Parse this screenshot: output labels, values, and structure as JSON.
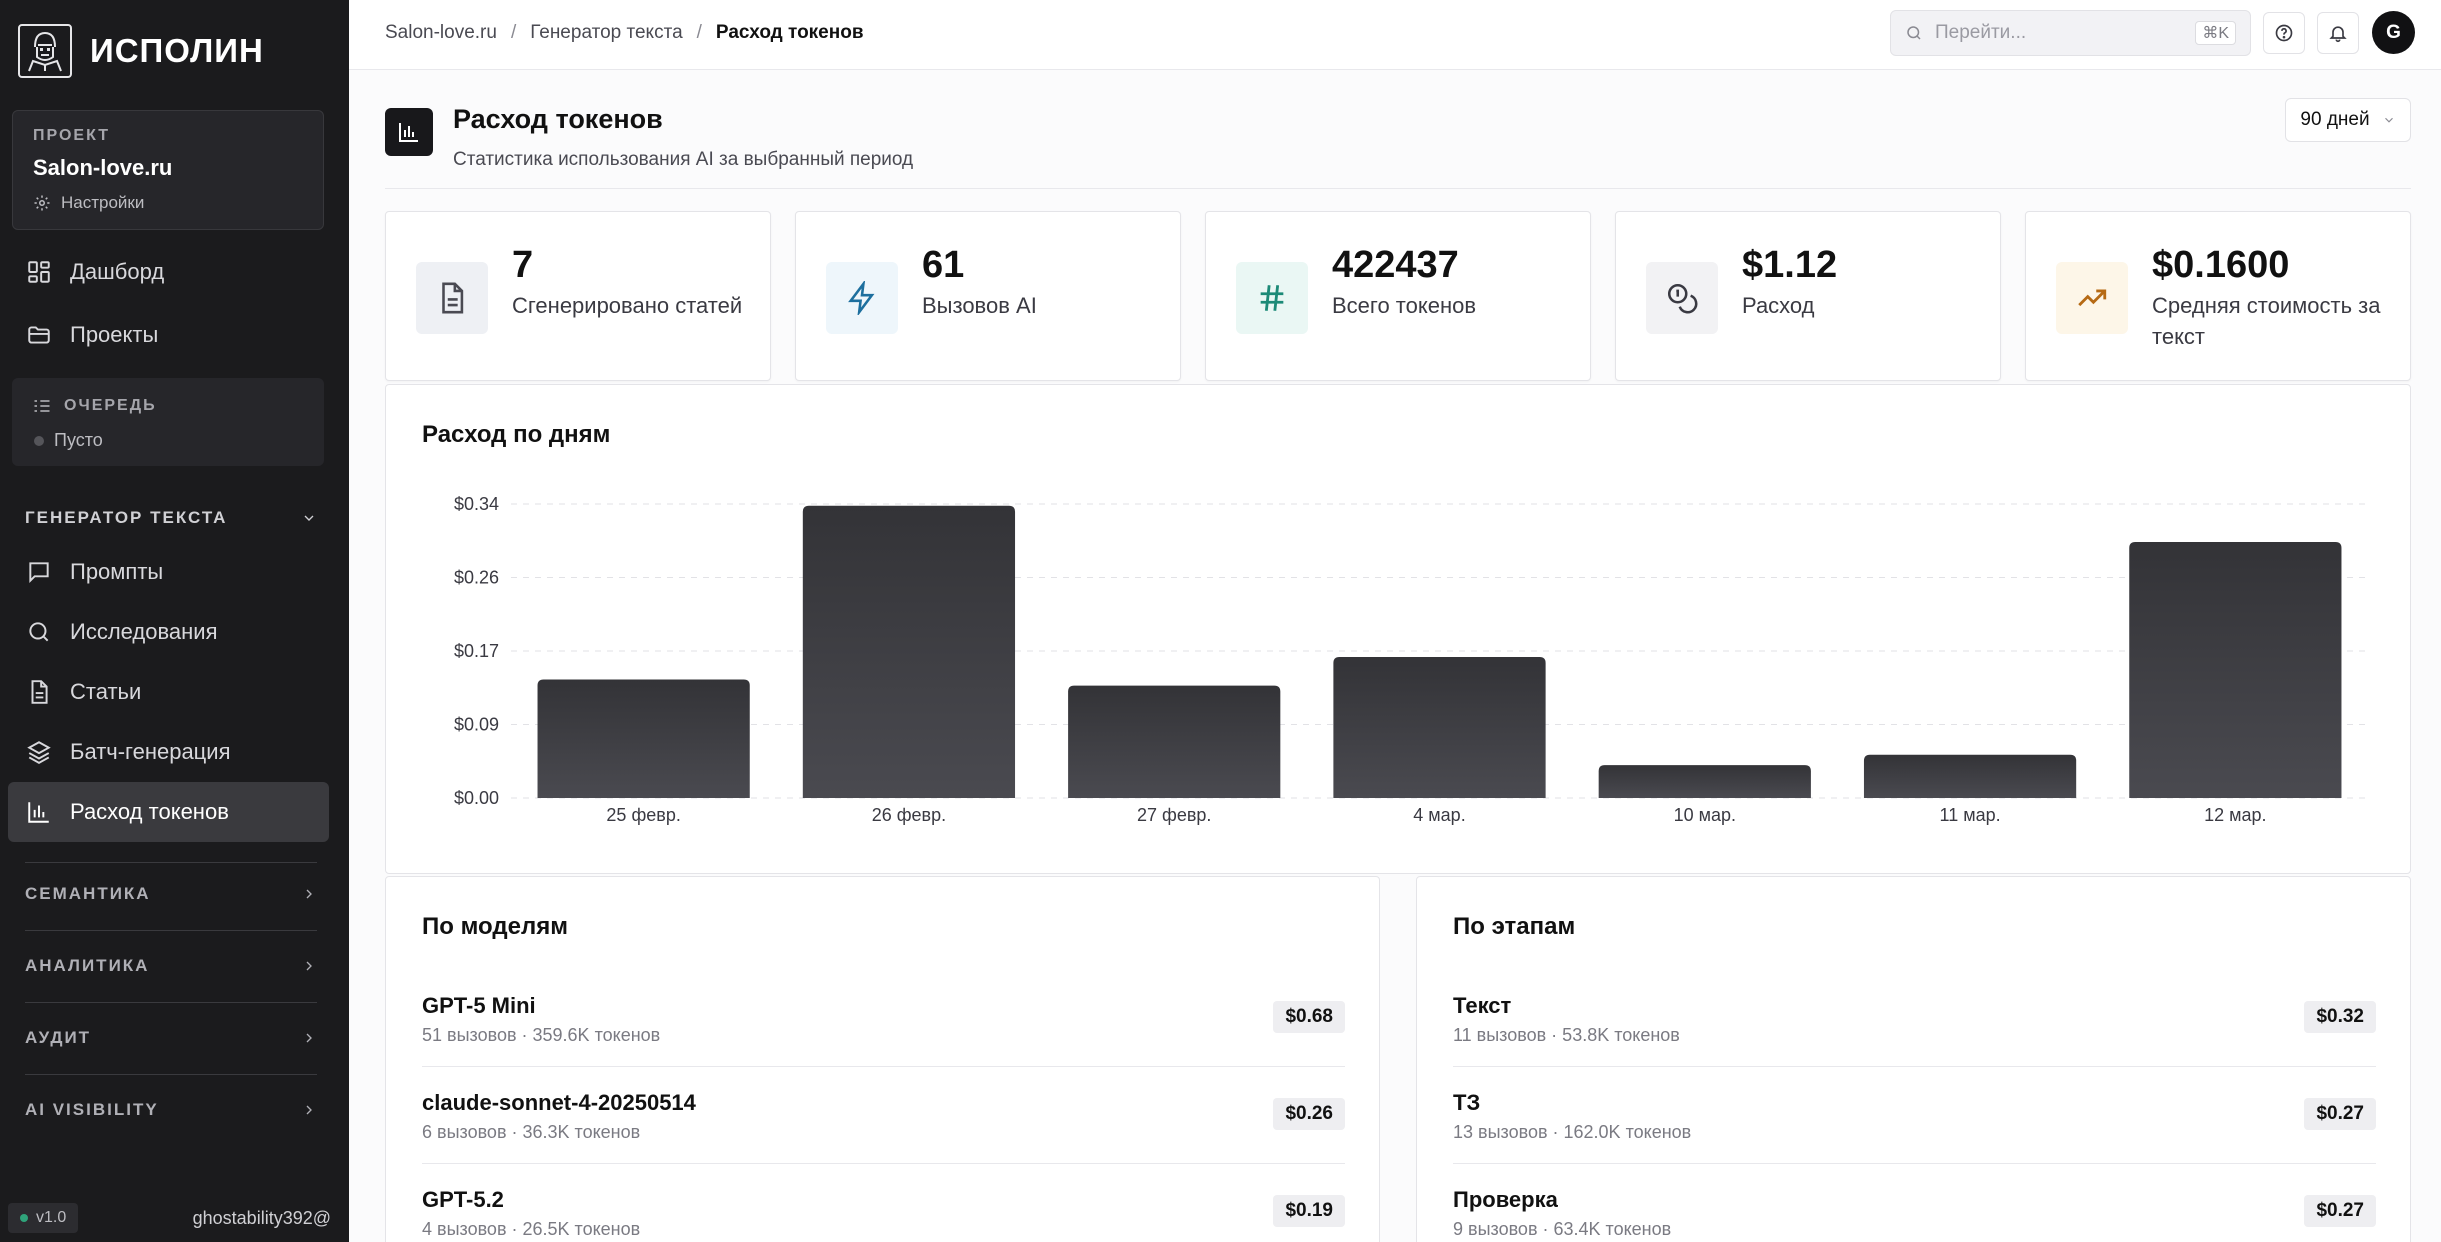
{
  "sidebar": {
    "brand_name": "ИСПОЛИН",
    "project": {
      "label": "ПРОЕКТ",
      "name": "Salon-love.ru",
      "settings_label": "Настройки"
    },
    "nav": [
      {
        "label": "Дашборд",
        "icon": "dashboard-icon"
      },
      {
        "label": "Проекты",
        "icon": "folder-icon"
      }
    ],
    "queue": {
      "title": "ОЧЕРЕДЬ",
      "status": "Пусто"
    },
    "text_generator": {
      "title": "ГЕНЕРАТОР ТЕКСТА",
      "items": [
        {
          "label": "Промпты",
          "icon": "message-icon"
        },
        {
          "label": "Исследования",
          "icon": "search-icon"
        },
        {
          "label": "Статьи",
          "icon": "document-icon"
        },
        {
          "label": "Батч-генерация",
          "icon": "layers-icon"
        },
        {
          "label": "Расход токенов",
          "icon": "bar-chart-icon",
          "active": true
        }
      ]
    },
    "sections": [
      "СЕМАНТИКА",
      "АНАЛИТИКА",
      "АУДИТ",
      "AI VISIBILITY"
    ],
    "version": "v1.0",
    "user": "ghostability392@"
  },
  "topbar": {
    "breadcrumb": [
      "Salon-love.ru",
      "Генератор текста",
      "Расход токенов"
    ],
    "search_placeholder": "Перейти...",
    "search_shortcut": "⌘K",
    "avatar_initial": "G"
  },
  "page": {
    "title": "Расход токенов",
    "subtitle": "Статистика использования AI за выбранный период",
    "period": "90 дней"
  },
  "stats": [
    {
      "value": "7",
      "label": "Сгенерировано статей",
      "icon": "document-icon",
      "icon_bg": "#eef0f4",
      "icon_color": "#4a4a52"
    },
    {
      "value": "61",
      "label": "Вызовов AI",
      "icon": "lightning-icon",
      "icon_bg": "#eef6fb",
      "icon_color": "#1d6f9e"
    },
    {
      "value": "422437",
      "label": "Всего токенов",
      "icon": "hash-icon",
      "icon_bg": "#eaf7f4",
      "icon_color": "#1c8a77"
    },
    {
      "value": "$1.12",
      "label": "Расход",
      "icon": "coins-icon",
      "icon_bg": "#f2f2f4",
      "icon_color": "#3a3a42"
    },
    {
      "value": "$0.1600",
      "label": "Средняя стоимость за текст",
      "icon": "trending-up-icon",
      "icon_bg": "#fdf6e8",
      "icon_color": "#b66a14"
    }
  ],
  "chart_data": {
    "type": "bar",
    "title": "Расход по дням",
    "categories": [
      "25 февр.",
      "26 февр.",
      "27 февр.",
      "4 мар.",
      "10 мар.",
      "11 мар.",
      "12 мар."
    ],
    "values": [
      0.137,
      0.338,
      0.13,
      0.163,
      0.038,
      0.05,
      0.296
    ],
    "yticks": [
      "$0.00",
      "$0.09",
      "$0.17",
      "$0.26",
      "$0.34"
    ],
    "ytick_values": [
      0,
      0.085,
      0.17,
      0.255,
      0.34
    ],
    "ylim": [
      0,
      0.34
    ],
    "grid": true,
    "bar_color": "#3c3c41"
  },
  "by_models": {
    "title": "По моделям",
    "rows": [
      {
        "name": "GPT-5 Mini",
        "meta": "51 вызовов · 359.6K токенов",
        "cost": "$0.68"
      },
      {
        "name": "claude-sonnet-4-20250514",
        "meta": "6 вызовов · 36.3K токенов",
        "cost": "$0.26"
      },
      {
        "name": "GPT-5.2",
        "meta": "4 вызовов · 26.5K токенов",
        "cost": "$0.19"
      }
    ]
  },
  "by_stages": {
    "title": "По этапам",
    "rows": [
      {
        "name": "Текст",
        "meta": "11 вызовов · 53.8K токенов",
        "cost": "$0.32"
      },
      {
        "name": "ТЗ",
        "meta": "13 вызовов · 162.0K токенов",
        "cost": "$0.27"
      },
      {
        "name": "Проверка",
        "meta": "9 вызовов · 63.4K токенов",
        "cost": "$0.27"
      }
    ]
  }
}
